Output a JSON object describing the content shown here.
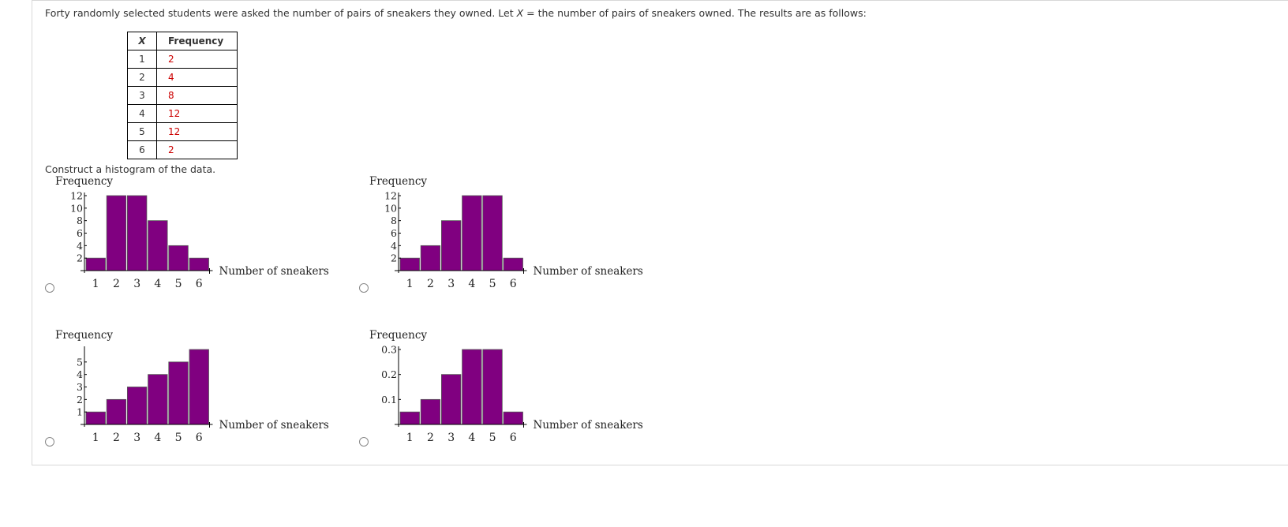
{
  "question": {
    "intro_before": "Forty randomly selected students were asked the number of pairs of sneakers they owned. Let ",
    "intro_var": "X",
    "intro_after": " = the number of pairs of sneakers owned. The results are as follows:",
    "table": {
      "headers": [
        "X",
        "Frequency"
      ],
      "rows": [
        {
          "x": "1",
          "f": "2"
        },
        {
          "x": "2",
          "f": "4"
        },
        {
          "x": "3",
          "f": "8"
        },
        {
          "x": "4",
          "f": "12"
        },
        {
          "x": "5",
          "f": "12"
        },
        {
          "x": "6",
          "f": "2"
        }
      ]
    },
    "prompt": "Construct a histogram of the data."
  },
  "colors": {
    "bar": "#800080",
    "bar_stroke": "#555555",
    "answer_red": "#cc0000"
  },
  "chart_data": [
    {
      "type": "bar",
      "option": "A",
      "title": "",
      "ylabel": "Frequency",
      "xlabel": "Number of sneakers",
      "categories": [
        "1",
        "2",
        "3",
        "4",
        "5",
        "6"
      ],
      "values": [
        2,
        12,
        12,
        8,
        4,
        2
      ],
      "yticks": [
        "2",
        "4",
        "6",
        "8",
        "10",
        "12"
      ],
      "ylim": [
        0,
        12
      ],
      "grid": false
    },
    {
      "type": "bar",
      "option": "B",
      "title": "",
      "ylabel": "Frequency",
      "xlabel": "Number of sneakers",
      "categories": [
        "1",
        "2",
        "3",
        "4",
        "5",
        "6"
      ],
      "values": [
        2,
        4,
        8,
        12,
        12,
        2
      ],
      "yticks": [
        "2",
        "4",
        "6",
        "8",
        "10",
        "12"
      ],
      "ylim": [
        0,
        12
      ],
      "grid": false
    },
    {
      "type": "bar",
      "option": "C",
      "title": "",
      "ylabel": "Frequency",
      "xlabel": "Number of sneakers",
      "categories": [
        "1",
        "2",
        "3",
        "4",
        "5",
        "6"
      ],
      "values": [
        1,
        2,
        3,
        4,
        5,
        6
      ],
      "yticks": [
        "1",
        "2",
        "3",
        "4",
        "5"
      ],
      "ylim": [
        0,
        6
      ],
      "grid": false
    },
    {
      "type": "bar",
      "option": "D",
      "title": "",
      "ylabel": "Frequency",
      "xlabel": "Number of sneakers",
      "categories": [
        "1",
        "2",
        "3",
        "4",
        "5",
        "6"
      ],
      "values": [
        0.05,
        0.1,
        0.2,
        0.3,
        0.3,
        0.05
      ],
      "yticks": [
        "0.1",
        "0.2",
        "0.3"
      ],
      "ylim": [
        0,
        0.3
      ],
      "grid": false
    }
  ]
}
